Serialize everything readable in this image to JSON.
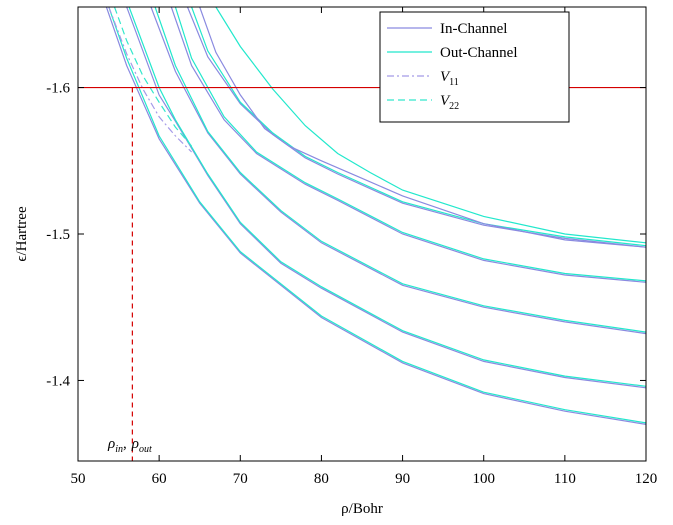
{
  "chart_data": {
    "type": "line",
    "xlabel": "ρ/Bohr",
    "ylabel": "ϵ/Hartree",
    "xlim": [
      50,
      120
    ],
    "ylim": [
      -1.655,
      -1.345
    ],
    "y_axis_inverted": true,
    "xticks": [
      50,
      60,
      70,
      80,
      90,
      100,
      110,
      120
    ],
    "yticks": [
      -1.6,
      -1.5,
      -1.4
    ],
    "xtick_labels": [
      "50",
      "60",
      "70",
      "80",
      "90",
      "100",
      "110",
      "120"
    ],
    "ytick_labels": [
      "-1.6",
      "-1.5",
      "-1.4"
    ],
    "grid": false,
    "legend_position": "top-right",
    "colors": {
      "in_channel": "#8a8ae0",
      "out_channel": "#22e8cc",
      "v11": "#a59be8",
      "v22": "#33e8cc",
      "energy_line": "#d40000",
      "rho_marker": "#d40000"
    },
    "legend": [
      {
        "key": "in",
        "label": "In-Channel",
        "style": "solid"
      },
      {
        "key": "out",
        "label": "Out-Channel",
        "style": "solid"
      },
      {
        "key": "v11",
        "label_main": "V",
        "label_sub": "11",
        "style": "dashdot"
      },
      {
        "key": "v22",
        "label_main": "V",
        "label_sub": "22",
        "style": "dashed"
      }
    ],
    "energy_level": -1.6,
    "rho_marker_x": 56.7,
    "annotation": {
      "rho_in_main": "ρ",
      "rho_in_sub": "in",
      "separator": ",",
      "rho_out_main": "ρ",
      "rho_out_sub": "out"
    },
    "series": [
      {
        "channel": "in",
        "x": [
          53.5,
          56,
          60,
          65,
          70,
          80,
          90,
          100,
          110,
          120
        ],
        "y": [
          -1.655,
          -1.615,
          -1.565,
          -1.521,
          -1.487,
          -1.443,
          -1.412,
          -1.391,
          -1.379,
          -1.37
        ]
      },
      {
        "channel": "out",
        "x": [
          53.8,
          56,
          60,
          65,
          70,
          80,
          90,
          100,
          110,
          120
        ],
        "y": [
          -1.655,
          -1.62,
          -1.567,
          -1.522,
          -1.488,
          -1.444,
          -1.413,
          -1.392,
          -1.38,
          -1.371
        ]
      },
      {
        "channel": "in",
        "x": [
          56,
          60,
          62,
          66,
          70,
          75,
          80,
          90,
          100,
          110,
          120
        ],
        "y": [
          -1.655,
          -1.595,
          -1.577,
          -1.54,
          -1.507,
          -1.48,
          -1.463,
          -1.433,
          -1.413,
          -1.402,
          -1.395
        ]
      },
      {
        "channel": "out",
        "x": [
          56.3,
          60,
          62,
          66,
          70,
          75,
          80,
          90,
          100,
          110,
          120
        ],
        "y": [
          -1.655,
          -1.6,
          -1.578,
          -1.541,
          -1.508,
          -1.481,
          -1.464,
          -1.434,
          -1.414,
          -1.403,
          -1.396
        ]
      },
      {
        "channel": "in",
        "x": [
          59,
          62,
          66,
          70,
          75,
          80,
          90,
          100,
          110,
          120
        ],
        "y": [
          -1.655,
          -1.611,
          -1.569,
          -1.541,
          -1.515,
          -1.494,
          -1.465,
          -1.45,
          -1.44,
          -1.432
        ]
      },
      {
        "channel": "out",
        "x": [
          59.5,
          62,
          66,
          70,
          75,
          80,
          90,
          100,
          110,
          120
        ],
        "y": [
          -1.655,
          -1.615,
          -1.57,
          -1.542,
          -1.516,
          -1.495,
          -1.466,
          -1.451,
          -1.441,
          -1.433
        ]
      },
      {
        "channel": "in",
        "x": [
          61.5,
          64,
          68,
          72,
          78,
          82,
          90,
          100,
          110,
          120
        ],
        "y": [
          -1.655,
          -1.615,
          -1.578,
          -1.555,
          -1.534,
          -1.523,
          -1.5,
          -1.482,
          -1.472,
          -1.467
        ]
      },
      {
        "channel": "out",
        "x": [
          62,
          64,
          68,
          72,
          78,
          82,
          90,
          100,
          110,
          120
        ],
        "y": [
          -1.655,
          -1.62,
          -1.58,
          -1.556,
          -1.535,
          -1.524,
          -1.501,
          -1.483,
          -1.473,
          -1.468
        ]
      },
      {
        "channel": "in",
        "x": [
          63.5,
          66,
          70,
          74,
          78,
          82,
          90,
          100,
          110,
          120
        ],
        "y": [
          -1.655,
          -1.621,
          -1.589,
          -1.568,
          -1.552,
          -1.541,
          -1.521,
          -1.506,
          -1.497,
          -1.491
        ]
      },
      {
        "channel": "out",
        "x": [
          64,
          66,
          70,
          74,
          78,
          82,
          90,
          100,
          110,
          120
        ],
        "y": [
          -1.655,
          -1.625,
          -1.59,
          -1.569,
          -1.553,
          -1.542,
          -1.522,
          -1.507,
          -1.498,
          -1.492
        ]
      },
      {
        "channel": "in",
        "x": [
          65,
          67,
          70,
          73,
          76,
          80,
          85,
          90,
          100,
          110,
          120
        ],
        "y": [
          -1.655,
          -1.624,
          -1.595,
          -1.572,
          -1.56,
          -1.55,
          -1.538,
          -1.526,
          -1.507,
          -1.496,
          -1.491
        ]
      },
      {
        "channel": "out",
        "x": [
          67,
          70,
          74,
          78,
          82,
          86,
          90,
          100,
          110,
          120
        ],
        "y": [
          -1.655,
          -1.628,
          -1.599,
          -1.574,
          -1.555,
          -1.542,
          -1.53,
          -1.512,
          -1.5,
          -1.494
        ]
      }
    ],
    "potentials": [
      {
        "channel": "v11",
        "x": [
          53.8,
          56,
          58,
          60,
          62,
          64
        ],
        "y": [
          -1.655,
          -1.623,
          -1.599,
          -1.58,
          -1.567,
          -1.556
        ]
      },
      {
        "channel": "v22",
        "x": [
          54.5,
          56,
          58,
          60,
          62,
          64
        ],
        "y": [
          -1.655,
          -1.632,
          -1.608,
          -1.59,
          -1.573,
          -1.56
        ]
      }
    ]
  }
}
